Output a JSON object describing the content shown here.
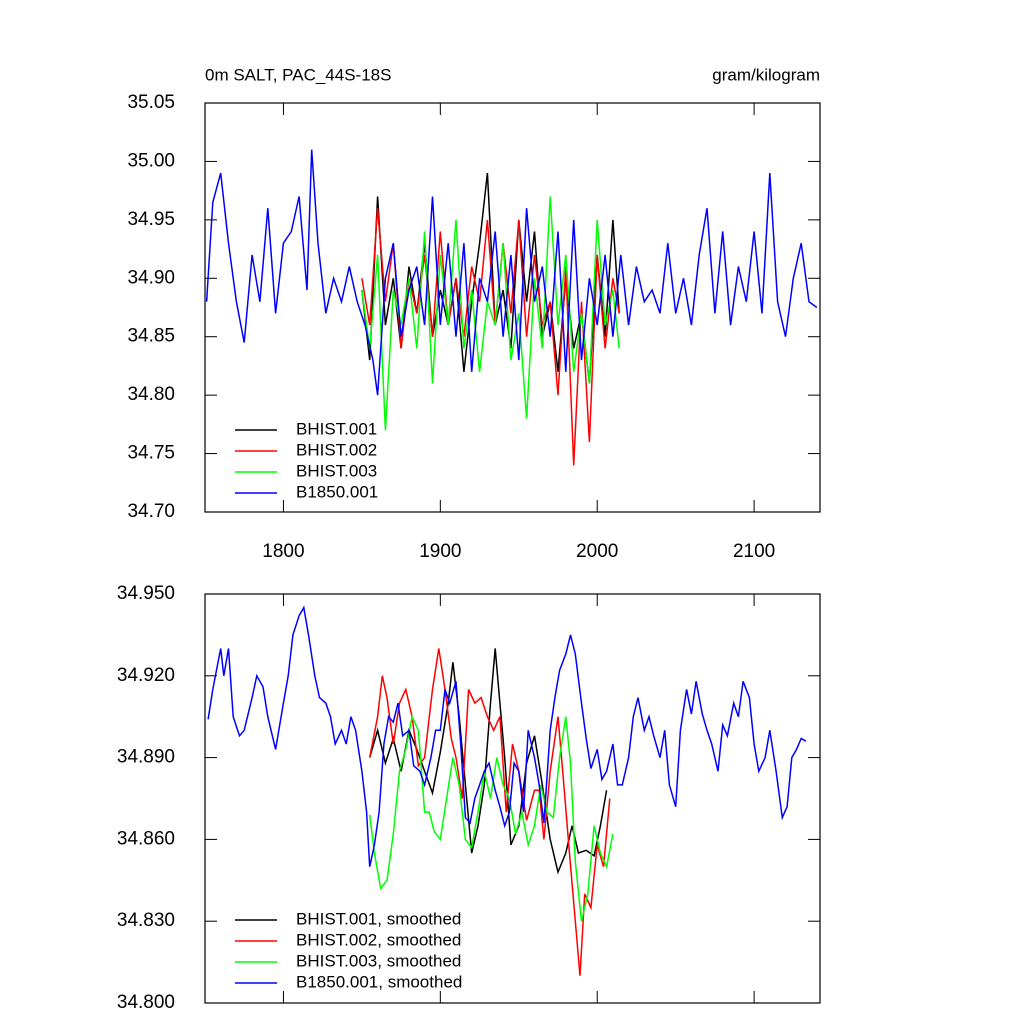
{
  "chart_data": [
    {
      "type": "line",
      "title": "0m SALT, PAC_44S-18S",
      "units": "gram/kilogram",
      "xlim": [
        1750,
        2142
      ],
      "ylim": [
        34.7,
        35.05
      ],
      "xticks": [
        1800,
        1900,
        2000,
        2100
      ],
      "yticks": [
        {
          "value": 34.7,
          "label": "34.70"
        },
        34.75,
        {
          "value": 34.8,
          "label": "34.80"
        },
        34.85,
        {
          "value": 34.9,
          "label": "34.90"
        },
        34.95,
        {
          "value": 35.0,
          "label": "35.00"
        },
        35.05
      ],
      "legend": "lower left",
      "series": [
        {
          "name": "BHIST.001",
          "color": "#000000",
          "x": [
            1850,
            1855,
            1860,
            1865,
            1870,
            1875,
            1880,
            1885,
            1890,
            1895,
            1900,
            1905,
            1910,
            1915,
            1920,
            1925,
            1930,
            1935,
            1940,
            1945,
            1950,
            1955,
            1960,
            1965,
            1970,
            1975,
            1980,
            1985,
            1990,
            1995,
            2000,
            2005,
            2010,
            2014
          ],
          "values": [
            34.89,
            34.83,
            34.97,
            34.86,
            34.9,
            34.84,
            34.91,
            34.87,
            34.93,
            34.85,
            34.89,
            34.86,
            34.9,
            34.82,
            34.88,
            34.93,
            34.99,
            34.86,
            34.89,
            34.84,
            34.95,
            34.88,
            34.94,
            34.85,
            34.88,
            34.82,
            34.9,
            34.84,
            34.87,
            34.81,
            34.92,
            34.85,
            34.95,
            34.87
          ]
        },
        {
          "name": "BHIST.002",
          "color": "#ff0000",
          "x": [
            1850,
            1855,
            1860,
            1865,
            1870,
            1875,
            1880,
            1885,
            1890,
            1895,
            1900,
            1905,
            1910,
            1915,
            1920,
            1925,
            1930,
            1935,
            1940,
            1945,
            1950,
            1955,
            1960,
            1965,
            1970,
            1975,
            1980,
            1985,
            1990,
            1995,
            2000,
            2005,
            2010,
            2014
          ],
          "values": [
            34.9,
            34.86,
            34.96,
            34.88,
            34.93,
            34.84,
            34.9,
            34.87,
            34.92,
            34.85,
            34.94,
            34.86,
            34.9,
            34.85,
            34.91,
            34.88,
            34.95,
            34.86,
            34.93,
            34.87,
            34.95,
            34.85,
            34.92,
            34.86,
            34.88,
            34.8,
            34.91,
            34.74,
            34.88,
            34.76,
            34.92,
            34.84,
            34.9,
            34.87
          ]
        },
        {
          "name": "BHIST.003",
          "color": "#00ff00",
          "x": [
            1850,
            1855,
            1860,
            1865,
            1870,
            1875,
            1880,
            1885,
            1890,
            1895,
            1900,
            1905,
            1910,
            1915,
            1920,
            1925,
            1930,
            1935,
            1940,
            1945,
            1950,
            1955,
            1960,
            1965,
            1970,
            1975,
            1980,
            1985,
            1990,
            1995,
            2000,
            2005,
            2010,
            2014
          ],
          "values": [
            34.89,
            34.84,
            34.92,
            34.77,
            34.89,
            34.86,
            34.9,
            34.84,
            34.94,
            34.81,
            34.92,
            34.86,
            34.95,
            34.84,
            34.89,
            34.82,
            34.88,
            34.86,
            34.93,
            34.83,
            34.87,
            34.78,
            34.9,
            34.84,
            34.97,
            34.86,
            34.92,
            34.82,
            34.87,
            34.81,
            34.95,
            34.86,
            34.89,
            34.84
          ]
        },
        {
          "name": "B1850.001",
          "color": "#0000ff",
          "x": [
            1751,
            1755,
            1760,
            1765,
            1770,
            1775,
            1780,
            1785,
            1790,
            1795,
            1800,
            1805,
            1810,
            1815,
            1818,
            1822,
            1827,
            1832,
            1837,
            1842,
            1847,
            1852,
            1857,
            1860,
            1865,
            1870,
            1875,
            1880,
            1885,
            1890,
            1895,
            1900,
            1905,
            1910,
            1915,
            1920,
            1925,
            1930,
            1935,
            1940,
            1945,
            1950,
            1955,
            1960,
            1965,
            1970,
            1975,
            1980,
            1985,
            1990,
            1995,
            2000,
            2005,
            2010,
            2015,
            2020,
            2025,
            2030,
            2035,
            2040,
            2045,
            2050,
            2055,
            2060,
            2065,
            2070,
            2075,
            2080,
            2085,
            2090,
            2095,
            2100,
            2105,
            2110,
            2115,
            2120,
            2125,
            2130,
            2135,
            2140
          ],
          "values": [
            34.88,
            34.965,
            34.99,
            34.93,
            34.88,
            34.845,
            34.92,
            34.88,
            34.96,
            34.87,
            34.93,
            34.94,
            34.97,
            34.89,
            35.01,
            34.93,
            34.87,
            34.9,
            34.88,
            34.91,
            34.88,
            34.86,
            34.83,
            34.8,
            34.9,
            34.93,
            34.85,
            34.89,
            34.91,
            34.86,
            34.97,
            34.86,
            34.93,
            34.85,
            34.93,
            34.82,
            34.9,
            34.88,
            34.94,
            34.85,
            34.92,
            34.83,
            34.96,
            34.88,
            34.91,
            34.85,
            34.94,
            34.82,
            34.95,
            34.83,
            34.9,
            34.86,
            34.92,
            34.85,
            34.92,
            34.86,
            34.91,
            34.88,
            34.89,
            34.87,
            34.93,
            34.87,
            34.9,
            34.86,
            34.92,
            34.96,
            34.87,
            34.94,
            34.86,
            34.91,
            34.88,
            34.94,
            34.87,
            34.99,
            34.88,
            34.85,
            34.9,
            34.93,
            34.88,
            34.875
          ]
        }
      ]
    },
    {
      "type": "line",
      "xlim": [
        1750,
        2142
      ],
      "ylim": [
        34.8,
        34.95
      ],
      "xticks": [
        1800,
        1900,
        2000,
        2100
      ],
      "xtick_labels": false,
      "yticks": [
        {
          "value": 34.8,
          "label": "34.800"
        },
        {
          "value": 34.83,
          "label": "34.830"
        },
        {
          "value": 34.86,
          "label": "34.860"
        },
        {
          "value": 34.89,
          "label": "34.890"
        },
        {
          "value": 34.92,
          "label": "34.920"
        },
        {
          "value": 34.95,
          "label": "34.950"
        }
      ],
      "legend": "lower left",
      "series": [
        {
          "name": "BHIST.001, smoothed",
          "color": "#000000",
          "x": [
            1855,
            1860,
            1865,
            1870,
            1875,
            1880,
            1885,
            1890,
            1895,
            1900,
            1905,
            1908,
            1912,
            1916,
            1920,
            1924,
            1928,
            1932,
            1935,
            1938,
            1941,
            1945,
            1950,
            1955,
            1960,
            1965,
            1970,
            1975,
            1980,
            1984,
            1988,
            1993,
            1998,
            2002,
            2006
          ],
          "values": [
            34.89,
            34.9,
            34.888,
            34.897,
            34.885,
            34.9,
            34.893,
            34.885,
            34.877,
            34.892,
            34.91,
            34.925,
            34.905,
            34.88,
            34.855,
            34.865,
            34.88,
            34.91,
            34.93,
            34.91,
            34.89,
            34.858,
            34.865,
            34.888,
            34.898,
            34.88,
            34.86,
            34.848,
            34.855,
            34.865,
            34.855,
            34.856,
            34.854,
            34.865,
            34.878
          ]
        },
        {
          "name": "BHIST.002, smoothed",
          "color": "#ff0000",
          "x": [
            1855,
            1860,
            1863,
            1866,
            1870,
            1874,
            1878,
            1882,
            1886,
            1890,
            1895,
            1899,
            1903,
            1907,
            1910,
            1914,
            1918,
            1922,
            1926,
            1930,
            1934,
            1938,
            1942,
            1946,
            1950,
            1955,
            1960,
            1963,
            1966,
            1970,
            1975,
            1978,
            1982,
            1986,
            1989,
            1992,
            1996,
            2000,
            2004,
            2008
          ],
          "values": [
            34.89,
            34.905,
            34.92,
            34.912,
            34.895,
            34.91,
            34.915,
            34.905,
            34.887,
            34.89,
            34.915,
            34.93,
            34.915,
            34.897,
            34.89,
            34.875,
            34.915,
            34.91,
            34.912,
            34.905,
            34.9,
            34.905,
            34.87,
            34.895,
            34.885,
            34.867,
            34.878,
            34.878,
            34.86,
            34.885,
            34.905,
            34.885,
            34.857,
            34.83,
            34.81,
            34.84,
            34.835,
            34.858,
            34.85,
            34.875
          ]
        },
        {
          "name": "BHIST.003, smoothed",
          "color": "#00ff00",
          "x": [
            1855,
            1858,
            1862,
            1866,
            1870,
            1874,
            1878,
            1882,
            1886,
            1890,
            1893,
            1896,
            1900,
            1904,
            1908,
            1912,
            1916,
            1920,
            1924,
            1928,
            1932,
            1936,
            1940,
            1944,
            1948,
            1952,
            1956,
            1960,
            1964,
            1968,
            1972,
            1976,
            1980,
            1983,
            1986,
            1990,
            1994,
            1998,
            2002,
            2006,
            2010
          ],
          "values": [
            34.869,
            34.855,
            34.842,
            34.845,
            34.862,
            34.885,
            34.893,
            34.905,
            34.9,
            34.87,
            34.87,
            34.863,
            34.86,
            34.875,
            34.89,
            34.88,
            34.86,
            34.857,
            34.87,
            34.885,
            34.875,
            34.89,
            34.88,
            34.875,
            34.862,
            34.87,
            34.858,
            34.865,
            34.88,
            34.87,
            34.868,
            34.89,
            34.905,
            34.888,
            34.852,
            34.83,
            34.84,
            34.865,
            34.855,
            34.85,
            34.862
          ]
        },
        {
          "name": "B1850.001, smoothed",
          "color": "#0000ff",
          "x": [
            1752,
            1755,
            1760,
            1762,
            1765,
            1768,
            1772,
            1775,
            1780,
            1783,
            1787,
            1790,
            1795,
            1800,
            1803,
            1806,
            1810,
            1813,
            1816,
            1820,
            1823,
            1827,
            1830,
            1833,
            1837,
            1840,
            1843,
            1846,
            1850,
            1853,
            1855,
            1858,
            1861,
            1864,
            1867,
            1870,
            1873,
            1876,
            1880,
            1883,
            1887,
            1890,
            1894,
            1897,
            1900,
            1903,
            1906,
            1910,
            1913,
            1916,
            1919,
            1922,
            1925,
            1928,
            1931,
            1935,
            1938,
            1941,
            1944,
            1947,
            1950,
            1953,
            1956,
            1960,
            1963,
            1966,
            1970,
            1973,
            1976,
            1980,
            1983,
            1986,
            1990,
            1993,
            1996,
            2000,
            2003,
            2006,
            2010,
            2013,
            2016,
            2020,
            2023,
            2026,
            2030,
            2033,
            2036,
            2040,
            2043,
            2046,
            2050,
            2053,
            2057,
            2060,
            2063,
            2067,
            2070,
            2073,
            2077,
            2080,
            2083,
            2087,
            2090,
            2093,
            2097,
            2100,
            2103,
            2107,
            2110,
            2114,
            2118,
            2121,
            2124,
            2127,
            2130,
            2133
          ],
          "values": [
            34.904,
            34.915,
            34.93,
            34.92,
            34.93,
            34.905,
            34.898,
            34.9,
            34.912,
            34.92,
            34.916,
            34.905,
            34.893,
            34.91,
            34.92,
            34.935,
            34.942,
            34.945,
            34.935,
            34.92,
            34.912,
            34.91,
            34.905,
            34.895,
            34.9,
            34.895,
            34.905,
            34.9,
            34.885,
            34.87,
            34.85,
            34.858,
            34.87,
            34.895,
            34.905,
            34.903,
            34.91,
            34.898,
            34.9,
            34.887,
            34.885,
            34.88,
            34.89,
            34.9,
            34.9,
            34.915,
            34.91,
            34.918,
            34.895,
            34.868,
            34.866,
            34.875,
            34.88,
            34.885,
            34.888,
            34.878,
            34.872,
            34.865,
            34.87,
            34.888,
            34.885,
            34.87,
            34.9,
            34.89,
            34.88,
            34.866,
            34.9,
            34.912,
            34.922,
            34.928,
            34.935,
            34.928,
            34.91,
            34.897,
            34.886,
            34.893,
            34.882,
            34.885,
            34.895,
            34.88,
            34.88,
            34.89,
            34.905,
            34.912,
            34.9,
            34.905,
            34.898,
            34.89,
            34.9,
            34.88,
            34.872,
            34.9,
            34.915,
            34.906,
            34.918,
            34.906,
            34.9,
            34.895,
            34.885,
            34.902,
            34.898,
            34.91,
            34.905,
            34.918,
            34.912,
            34.895,
            34.885,
            34.89,
            34.9,
            34.885,
            34.868,
            34.872,
            34.89,
            34.893,
            34.897,
            34.896
          ]
        }
      ]
    }
  ]
}
